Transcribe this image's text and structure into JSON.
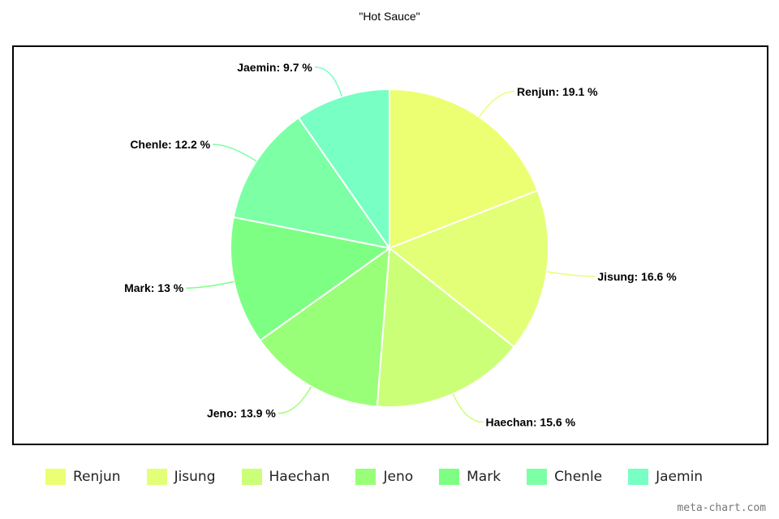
{
  "chart_data": {
    "type": "pie",
    "title": "\"Hot Sauce\"",
    "unit": "%",
    "categories": [
      "Renjun",
      "Jisung",
      "Haechan",
      "Jeno",
      "Mark",
      "Chenle",
      "Jaemin"
    ],
    "values": [
      19.1,
      16.6,
      15.6,
      13.9,
      13,
      12.2,
      9.7
    ],
    "colors": [
      "#ecff72",
      "#e3ff78",
      "#ccff78",
      "#99ff78",
      "#7dff84",
      "#7dffa6",
      "#78ffc3"
    ],
    "legend_position": "bottom",
    "start": "top",
    "direction": "clockwise"
  },
  "watermark": "meta-chart.com"
}
